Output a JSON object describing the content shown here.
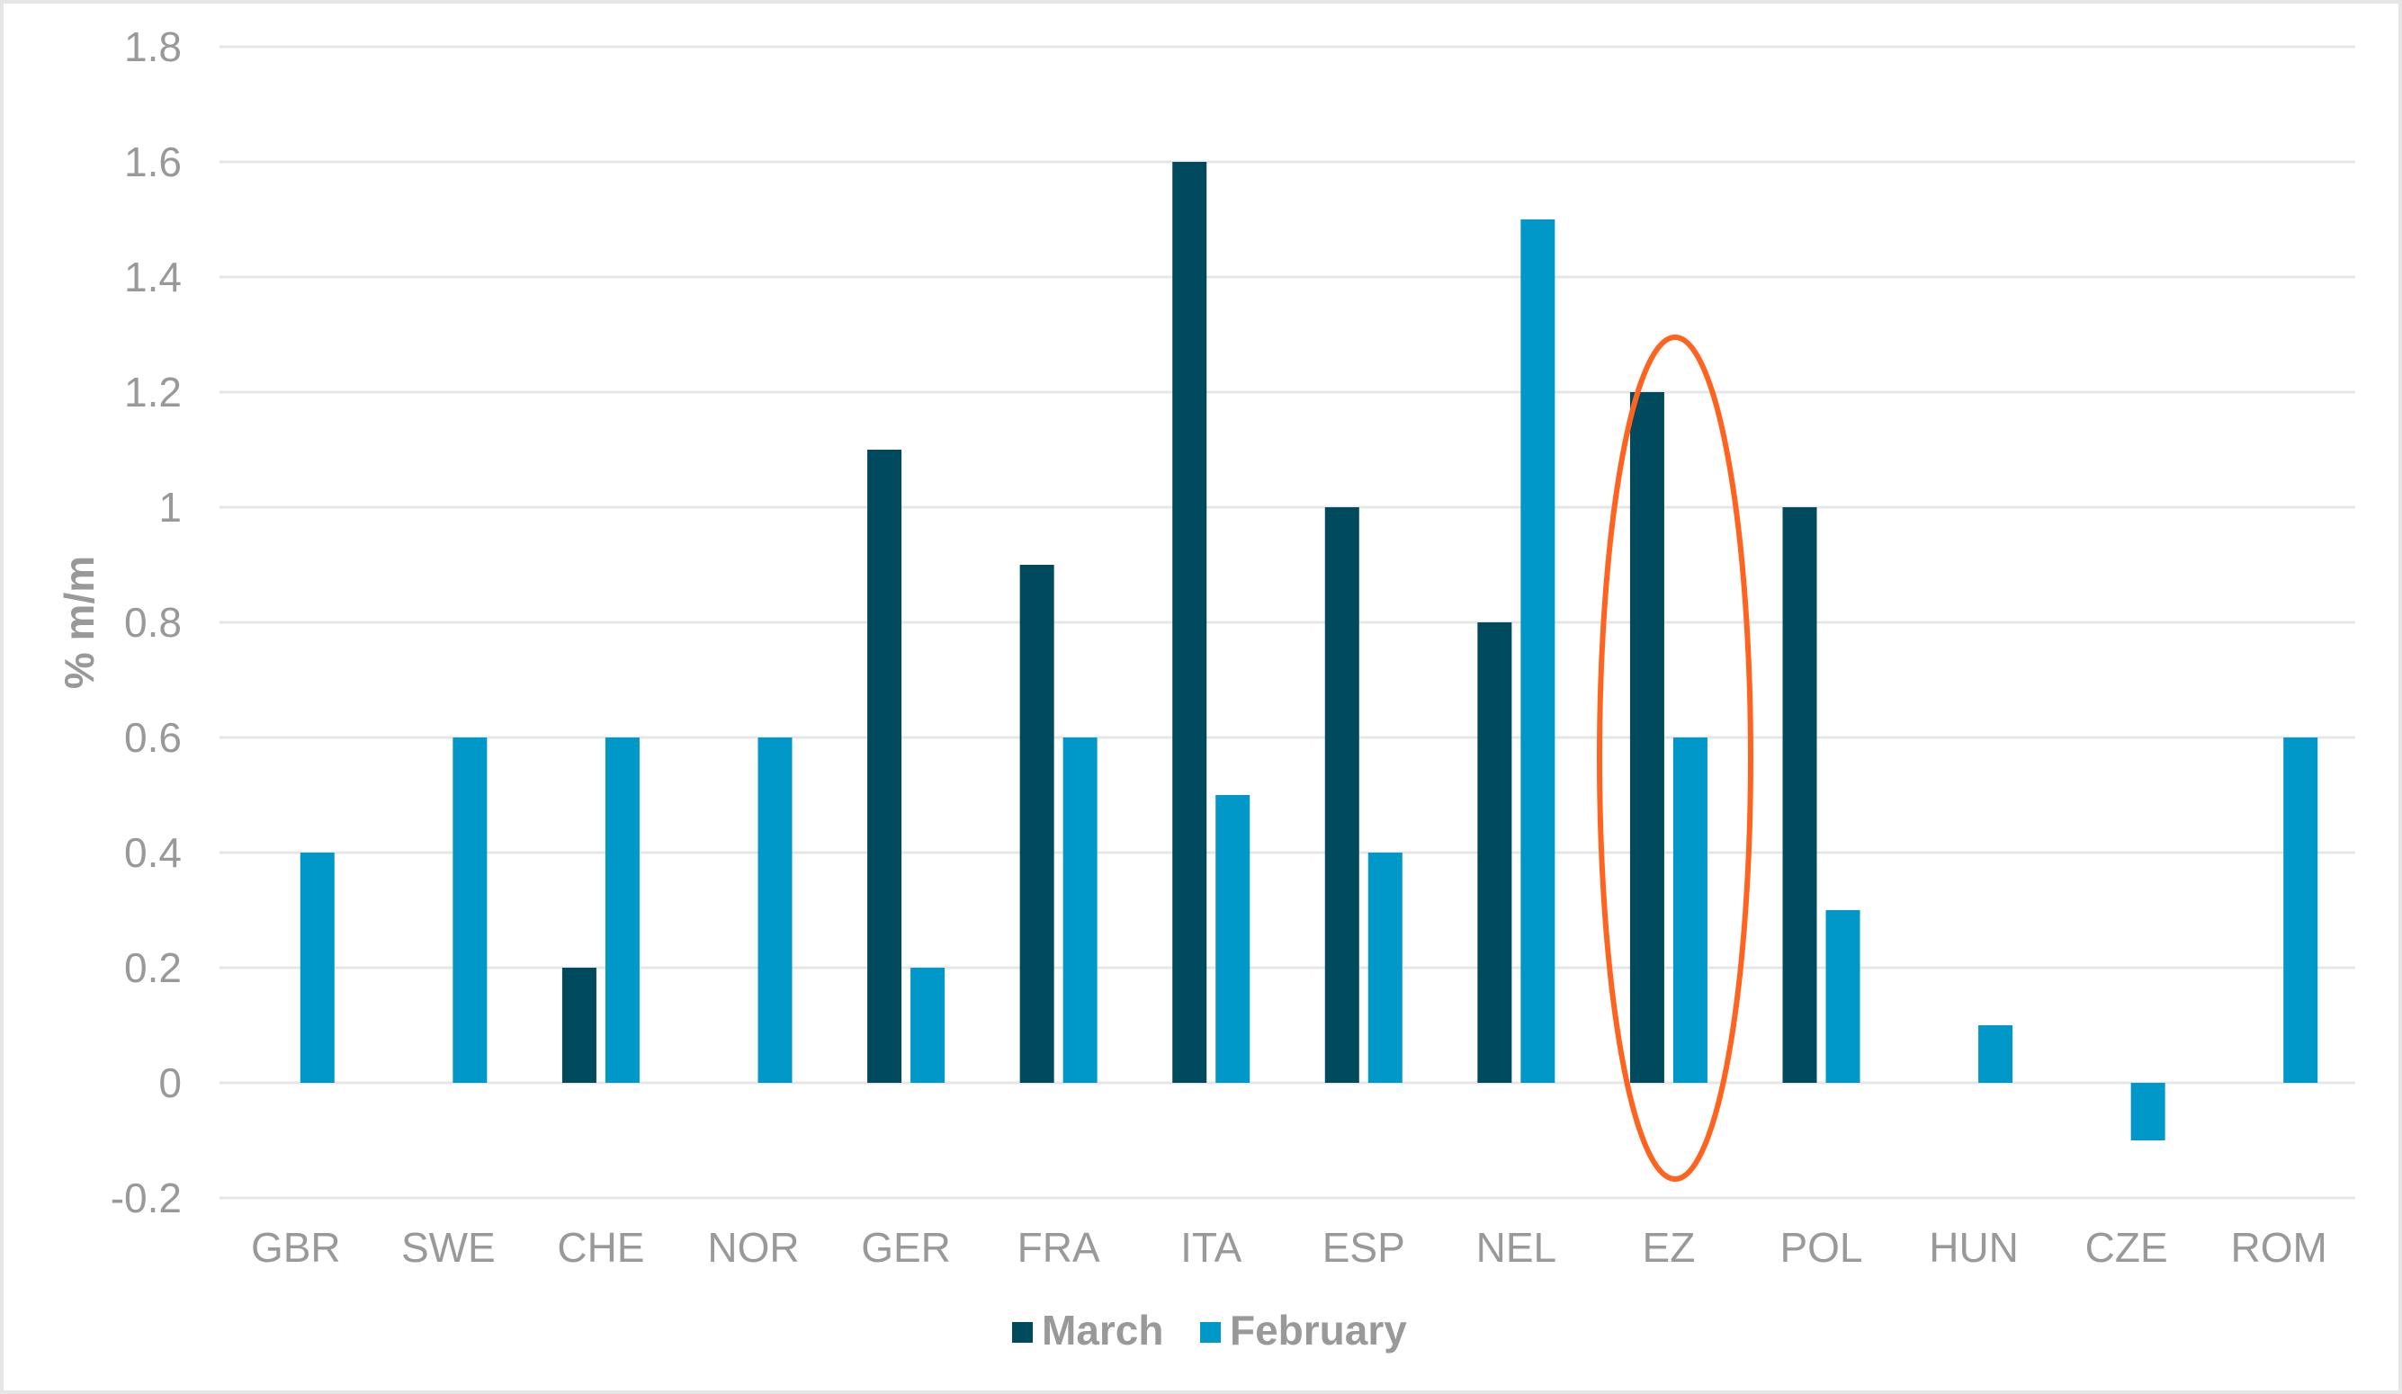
{
  "chart_data": {
    "type": "bar",
    "title": "",
    "xlabel": "",
    "ylabel": "% m/m",
    "ylim": [
      -0.2,
      1.8
    ],
    "yticks": [
      1.8,
      1.6,
      1.4,
      1.2,
      1,
      0.8,
      0.6,
      0.4,
      0.2,
      0,
      -0.2
    ],
    "ytick_labels": [
      "1.8",
      "1.6",
      "1.4",
      "1.2",
      "1",
      "0.8",
      "0.6",
      "0.4",
      "0.2",
      "0",
      "-0.2"
    ],
    "grid": true,
    "legend_position": "bottom",
    "categories": [
      "GBR",
      "SWE",
      "CHE",
      "NOR",
      "GER",
      "FRA",
      "ITA",
      "ESP",
      "NEL",
      "EZ",
      "POL",
      "HUN",
      "CZE",
      "ROM"
    ],
    "series": [
      {
        "name": "March",
        "color": "#004a5e",
        "values": [
          null,
          null,
          0.2,
          null,
          1.1,
          0.9,
          1.6,
          1.0,
          0.8,
          1.2,
          1.0,
          null,
          null,
          null
        ]
      },
      {
        "name": "February",
        "color": "#0098c8",
        "values": [
          0.4,
          0.6,
          0.6,
          0.6,
          0.2,
          0.6,
          0.5,
          0.4,
          1.5,
          0.6,
          0.3,
          0.1,
          -0.1,
          0.6
        ]
      }
    ],
    "annotations": [
      {
        "type": "ellipse",
        "target_category": "EZ",
        "color": "#ff6320",
        "description": "Highlight around EZ bars"
      }
    ]
  },
  "legend": {
    "items": [
      {
        "label": "March",
        "color": "#004a5e"
      },
      {
        "label": "February",
        "color": "#0098c8"
      }
    ]
  },
  "axis": {
    "y_title": "% m/m"
  }
}
